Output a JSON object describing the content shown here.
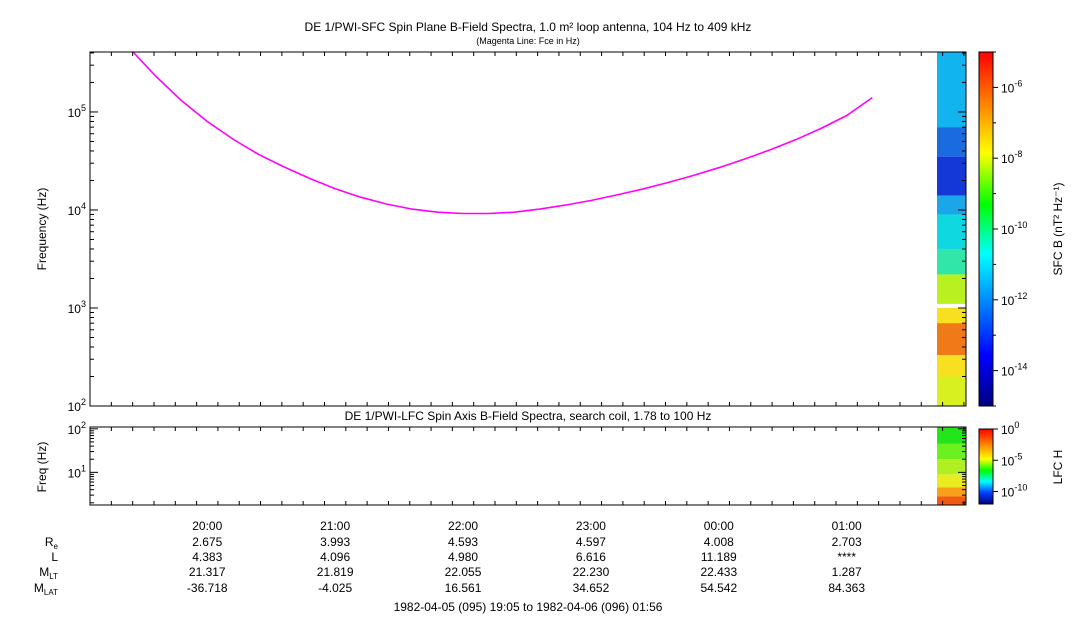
{
  "chart_data": [
    {
      "type": "heatmap",
      "title": "DE 1/PWI-SFC  Spin Plane B-Field Spectra, 1.0 m² loop antenna, 104 Hz to 409 kHz",
      "subtitle": "(Magenta Line: Fce in Hz)",
      "ylabel": "Frequency (Hz)",
      "yscale": "log",
      "ylim": [
        100,
        409000
      ],
      "y_ticks": [
        100,
        1000,
        10000,
        100000
      ],
      "y_tick_labels": [
        {
          "base": "10",
          "exp": "2"
        },
        {
          "base": "10",
          "exp": "3"
        },
        {
          "base": "10",
          "exp": "4"
        },
        {
          "base": "10",
          "exp": "5"
        }
      ],
      "x_ticks": [
        "20:00",
        "21:00",
        "22:00",
        "23:00",
        "00:00",
        "01:00"
      ],
      "xlim_hours": [
        19.083,
        25.933
      ],
      "series": [
        {
          "name": "Fce",
          "color": "#ff00ff",
          "x_hours": [
            19.42,
            19.6,
            19.8,
            20.0,
            20.2,
            20.4,
            20.6,
            20.8,
            21.0,
            21.2,
            21.4,
            21.6,
            21.8,
            22.0,
            22.2,
            22.4,
            22.6,
            22.8,
            23.0,
            23.2,
            23.4,
            23.6,
            23.8,
            24.0,
            24.2,
            24.4,
            24.6,
            24.8,
            25.0,
            25.2
          ],
          "y_hz": [
            440000,
            230000,
            130000,
            80000,
            53000,
            37000,
            27500,
            21000,
            16500,
            13500,
            11500,
            10200,
            9500,
            9200,
            9200,
            9500,
            10200,
            11200,
            12500,
            14200,
            16300,
            19000,
            22500,
            27000,
            33000,
            41000,
            52000,
            68000,
            92000,
            140000
          ]
        }
      ],
      "colorbar": {
        "label": "SFC B (nT² Hz⁻¹)",
        "scale": "log",
        "range": [
          1e-15,
          1e-05
        ],
        "ticks": [
          {
            "base": "10",
            "exp": "-6"
          },
          {
            "base": "10",
            "exp": "-8"
          },
          {
            "base": "10",
            "exp": "-10"
          },
          {
            "base": "10",
            "exp": "-12"
          },
          {
            "base": "10",
            "exp": "-14"
          }
        ],
        "tick_values": [
          -6,
          -8,
          -10,
          -12,
          -14
        ],
        "colors": [
          "#ff0000",
          "#ff8000",
          "#ffff00",
          "#00ff00",
          "#00ffff",
          "#0080ff",
          "#0000ff",
          "#000080"
        ]
      },
      "data_time_range": [
        "01:37",
        "01:56"
      ],
      "spectrogram_bands": [
        {
          "f_low": 70000,
          "f_high": 409000,
          "color": "#12b4f0"
        },
        {
          "f_low": 35000,
          "f_high": 70000,
          "color": "#1a6ae0"
        },
        {
          "f_low": 14000,
          "f_high": 35000,
          "color": "#1437d8"
        },
        {
          "f_low": 9000,
          "f_high": 14000,
          "color": "#1aa6e8"
        },
        {
          "f_low": 4000,
          "f_high": 9000,
          "color": "#10d8e0"
        },
        {
          "f_low": 2200,
          "f_high": 4000,
          "color": "#30e6a8"
        },
        {
          "f_low": 1100,
          "f_high": 2200,
          "color": "#b8f020"
        },
        {
          "f_low": 1000,
          "f_high": 1100,
          "color": "#ffffff"
        },
        {
          "f_low": 700,
          "f_high": 1000,
          "color": "#f6e020"
        },
        {
          "f_low": 330,
          "f_high": 700,
          "color": "#f07a18"
        },
        {
          "f_low": 200,
          "f_high": 330,
          "color": "#f6e020"
        },
        {
          "f_low": 100,
          "f_high": 200,
          "color": "#d8f020"
        }
      ]
    },
    {
      "type": "heatmap",
      "title": "DE 1/PWI-LFC  Spin Axis B-Field Spectra, search coil, 1.78 to 100 Hz",
      "ylabel": "Freq (Hz)",
      "yscale": "log",
      "ylim": [
        1.78,
        110
      ],
      "y_ticks": [
        10,
        100
      ],
      "y_tick_labels": [
        {
          "base": "10",
          "exp": "1"
        },
        {
          "base": "10",
          "exp": "2"
        }
      ],
      "colorbar": {
        "label": "LFC H",
        "scale": "log",
        "range": [
          1e-12,
          1
        ],
        "ticks": [
          {
            "base": "10",
            "exp": "0"
          },
          {
            "base": "10",
            "exp": "-5"
          },
          {
            "base": "10",
            "exp": "-10"
          }
        ],
        "tick_values": [
          0,
          -5,
          -10
        ]
      },
      "spectrogram_bands": [
        {
          "f_low": 45,
          "f_high": 110,
          "color": "#22e61a"
        },
        {
          "f_low": 20,
          "f_high": 45,
          "color": "#6cf020"
        },
        {
          "f_low": 9,
          "f_high": 20,
          "color": "#b0f020"
        },
        {
          "f_low": 4.5,
          "f_high": 9,
          "color": "#e8ec20"
        },
        {
          "f_low": 2.8,
          "f_high": 4.5,
          "color": "#f7a01a"
        },
        {
          "f_low": 1.78,
          "f_high": 2.8,
          "color": "#f25a12"
        }
      ]
    }
  ],
  "ephemeris": {
    "times": [
      "20:00",
      "21:00",
      "22:00",
      "23:00",
      "00:00",
      "01:00"
    ],
    "rows": [
      {
        "label": "R",
        "sub": "e",
        "values": [
          "2.675",
          "3.993",
          "4.593",
          "4.597",
          "4.008",
          "2.703"
        ]
      },
      {
        "label": "L",
        "sub": "",
        "values": [
          "4.383",
          "4.096",
          "4.980",
          "6.616",
          "11.189",
          "****"
        ]
      },
      {
        "label": "M",
        "sub": "LT",
        "values": [
          "21.317",
          "21.819",
          "22.055",
          "22.230",
          "22.433",
          "1.287"
        ]
      },
      {
        "label": "M",
        "sub": "LAT",
        "values": [
          "-36.718",
          "-4.025",
          "16.561",
          "34.652",
          "54.542",
          "84.363"
        ]
      }
    ],
    "range_text": "1982-04-05 (095) 19:05 to 1982-04-06 (096) 01:56"
  }
}
